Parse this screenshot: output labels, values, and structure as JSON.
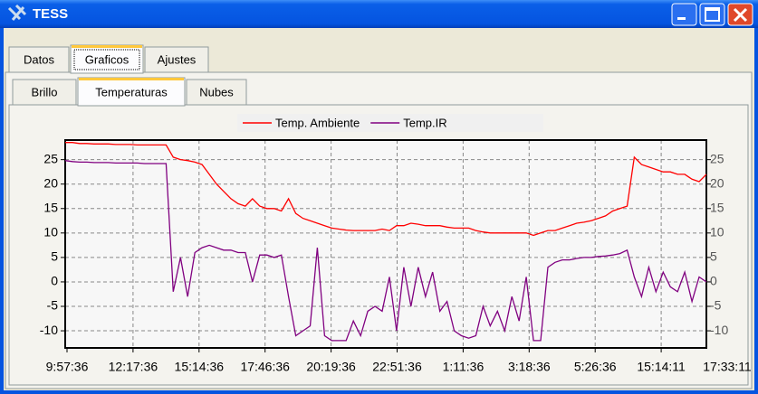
{
  "window": {
    "title": "TESS"
  },
  "tabs": [
    "Datos",
    "Graficos",
    "Ajustes"
  ],
  "active_tab": 1,
  "subtabs": [
    "Brillo",
    "Temperaturas",
    "Nubes"
  ],
  "active_subtab": 1,
  "chart_data": {
    "type": "line",
    "x_labels": [
      "9:57:36",
      "12:17:36",
      "15:14:36",
      "17:46:36",
      "20:19:36",
      "22:51:36",
      "1:11:36",
      "3:18:36",
      "5:26:36",
      "15:14:11",
      "17:33:11"
    ],
    "series": [
      {
        "name": "Temp. Ambiente",
        "color": "#ff0000",
        "values": [
          28.5,
          28.5,
          28.3,
          28.3,
          28.2,
          28.2,
          28.2,
          28.1,
          28.1,
          28.1,
          28,
          28,
          28,
          28,
          28,
          25.5,
          25,
          24.8,
          24.5,
          24,
          22,
          20,
          18.5,
          17,
          16,
          15.5,
          17,
          15.5,
          15,
          15,
          14.5,
          17,
          14,
          13,
          12.5,
          12,
          11.5,
          11,
          10.8,
          10.6,
          10.5,
          10.5,
          10.5,
          10.5,
          10.8,
          10.5,
          11.5,
          11.5,
          12,
          11.8,
          11.5,
          11.5,
          11.5,
          11.2,
          11,
          11,
          11,
          10.5,
          10.2,
          10,
          10,
          10,
          10,
          10,
          10,
          9.5,
          10,
          10.5,
          10.5,
          11,
          11.5,
          12,
          12.2,
          12.5,
          13,
          13.5,
          14.5,
          15,
          15.5,
          25.5,
          24,
          23.5,
          23,
          22.5,
          22.5,
          22,
          22,
          21,
          20.5,
          22
        ]
      },
      {
        "name": "Temp.IR",
        "color": "#800080",
        "values": [
          24.8,
          24.6,
          24.5,
          24.5,
          24.4,
          24.4,
          24.4,
          24.3,
          24.3,
          24.3,
          24.3,
          24.2,
          24.2,
          24.2,
          24.2,
          -2,
          5,
          -3,
          6,
          7,
          7.5,
          7,
          6.5,
          6.5,
          6,
          6,
          0,
          5.5,
          5.5,
          5,
          5.5,
          -3,
          -11,
          -10,
          -9,
          7,
          -11,
          -12,
          -12,
          -12,
          -8,
          -11,
          -6,
          -5,
          -6,
          1,
          -10,
          3,
          -5,
          3,
          -3,
          2,
          -6,
          -4,
          -10,
          -11,
          -11.5,
          -11,
          -5,
          -9,
          -6,
          -10,
          -3,
          -8,
          1,
          -12,
          -12,
          3,
          4,
          4.5,
          4.5,
          4.8,
          5,
          5,
          5.2,
          5.3,
          5.5,
          5.8,
          6.5,
          1,
          -3,
          3,
          -2,
          2,
          -1,
          -2,
          2,
          -4,
          1,
          0
        ]
      }
    ],
    "ylim": [
      -13.5,
      29
    ],
    "yticks": [
      -10,
      -5,
      0,
      5,
      10,
      15,
      20,
      25
    ],
    "grid": true,
    "legend": "top"
  }
}
